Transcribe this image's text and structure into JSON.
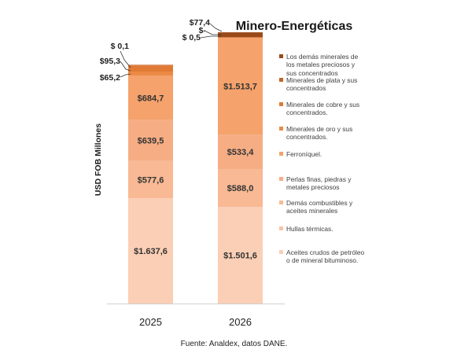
{
  "chart_data": {
    "type": "bar",
    "stacked": true,
    "title": "Minero-Energéticas",
    "ylabel": "USD FOB Millones",
    "xlabel": "",
    "categories": [
      "2025",
      "2026"
    ],
    "series": [
      {
        "name": "Aceites crudos de petróleo o de mineral bituminoso.",
        "color": "#fbcfb5",
        "values": [
          1637.6,
          1501.6
        ],
        "labels": [
          "$1.637,6",
          "$1.501,6"
        ]
      },
      {
        "name": "Hullas térmicas.",
        "color": "#f9c3a4",
        "values": [
          0,
          0
        ],
        "labels": [
          "",
          ""
        ]
      },
      {
        "name": "Demás combustibles y aceites minerales",
        "color": "#f8b994",
        "values": [
          577.6,
          588.0
        ],
        "labels": [
          "$577,6",
          "$588,0"
        ]
      },
      {
        "name": "Perlas finas, piedras y metales preciosos",
        "color": "#f6ad84",
        "values": [
          639.5,
          533.4
        ],
        "labels": [
          "$639,5",
          "$533,4"
        ]
      },
      {
        "name": "Ferroníquel.",
        "color": "#f5a26c",
        "values": [
          684.7,
          1513.7
        ],
        "labels": [
          "$684,7",
          "$1.513,7"
        ]
      },
      {
        "name": "Minerales de oro y sus concentrados.",
        "color": "#ec8a45",
        "values": [
          65.2,
          0.5
        ],
        "labels": [
          "$65,2",
          "$ 0,5"
        ]
      },
      {
        "name": "Minerales de cobre y sus concentrados.",
        "color": "#e07a35",
        "values": [
          95.3,
          0
        ],
        "labels": [
          "$95,3",
          "$-"
        ]
      },
      {
        "name": "Minerales de plata y sus concentrados",
        "color": "#c46428",
        "values": [
          0.1,
          0
        ],
        "labels": [
          "$ 0,1",
          ""
        ]
      },
      {
        "name": "Los demás minerales de los metales preciosos y sus concentrados",
        "color": "#9a4a1a",
        "values": [
          0,
          77.4
        ],
        "labels": [
          "",
          "$77,4"
        ]
      }
    ],
    "ylim": [
      0,
      4350
    ],
    "grid": false,
    "legend_position": "right",
    "source": "Fuente: Analdex, datos DANE."
  }
}
